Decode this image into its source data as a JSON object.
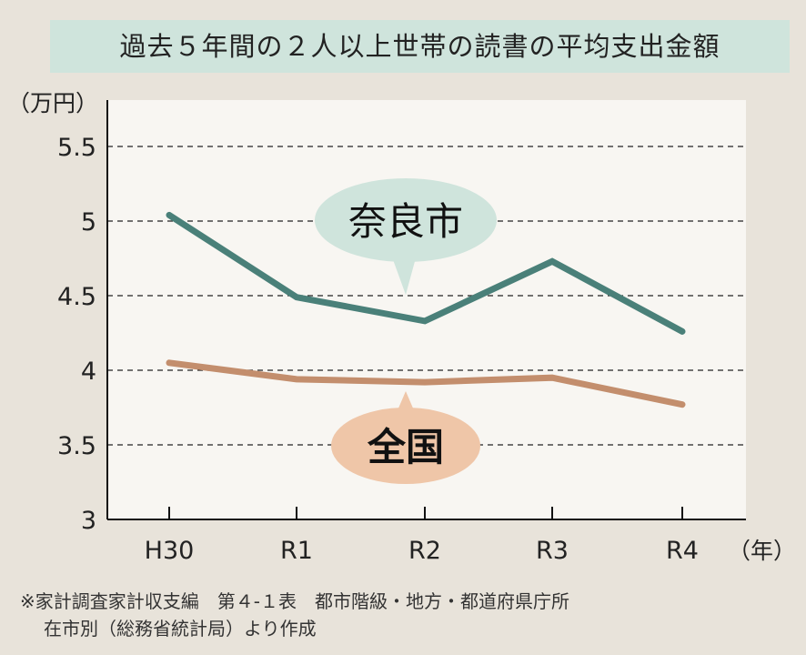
{
  "title": "過去５年間の２人以上世帯の読書の平均支出金額",
  "note": {
    "line1": "※家計調査家計収支編　第４-１表　都市階級・地地方・都道府県庁所",
    "line2": "在市別（総務省統計局）より作成"
  },
  "chart_data": {
    "type": "line",
    "title": "過去５年間の２人以上世帯の読書の平均支出金額",
    "ylabel": "（万円）",
    "xlabel": "（年）",
    "categories": [
      "H30",
      "R1",
      "R2",
      "R3",
      "R4"
    ],
    "ylim": [
      3,
      5.5
    ],
    "yticks": [
      "3",
      "3.5",
      "4",
      "4.5",
      "5",
      "5.5"
    ],
    "grid": true,
    "series": [
      {
        "name": "奈良市",
        "values": [
          5.04,
          4.49,
          4.33,
          4.73,
          4.26
        ],
        "color": "#4a8079",
        "bubble_color": "#cfe4dc"
      },
      {
        "name": "全国",
        "values": [
          4.05,
          3.94,
          3.92,
          3.95,
          3.77
        ],
        "color": "#c38e6d",
        "bubble_color": "#efc6a8"
      }
    ]
  }
}
